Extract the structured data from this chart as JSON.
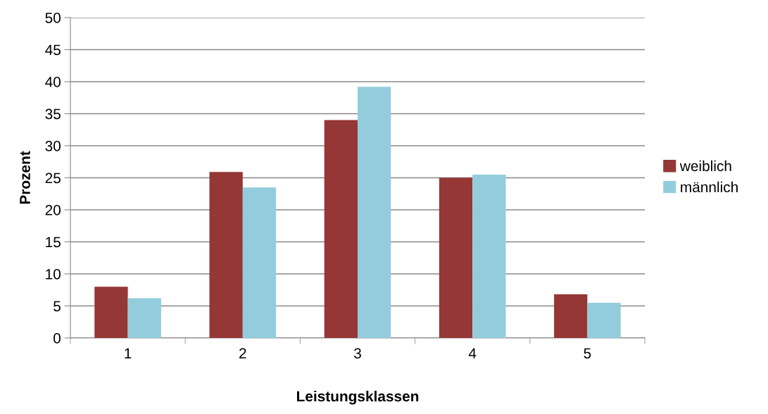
{
  "chart_data": {
    "type": "bar",
    "xlabel": "Leistungsklassen",
    "ylabel": "Prozent",
    "categories": [
      "1",
      "2",
      "3",
      "4",
      "5"
    ],
    "series": [
      {
        "name": "weiblich",
        "color": "#953735",
        "values": [
          8.0,
          25.9,
          34.0,
          25.0,
          6.8
        ]
      },
      {
        "name": "männlich",
        "color": "#93cddd",
        "values": [
          6.2,
          23.5,
          39.2,
          25.5,
          5.5
        ]
      }
    ],
    "ylim": [
      0,
      50
    ],
    "yticks": [
      0,
      5,
      10,
      15,
      20,
      25,
      30,
      35,
      40,
      45,
      50
    ],
    "grid": "y",
    "legend": "right"
  }
}
